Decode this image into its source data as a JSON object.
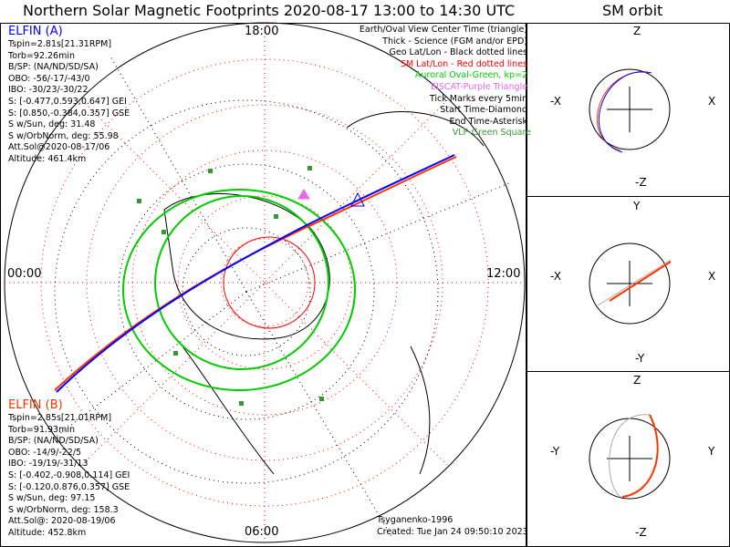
{
  "title": "Northern Solar Magnetic Footprints 2020-08-17 13:00 to 14:30 UTC",
  "orbit_title": "SM orbit",
  "colors": {
    "elfin_a": "#0000ff",
    "elfin_b": "#ff3300",
    "oval": "#00cc00",
    "eiscat": "#ee66ee",
    "vlf": "#339933",
    "grid_sm": "#ff0000"
  },
  "mlt_labels": {
    "top": "18:00",
    "left": "00:00",
    "right": "12:00",
    "bottom": "06:00"
  },
  "elfin_a": {
    "name": "ELFIN (A)",
    "lines": [
      "Tspin=2.81s[21.31RPM]",
      "Torb=92.26min",
      "B/SP: (NA/ND/SD/SA)",
      "OBO: -56/-17/-43/0",
      "IBO: -30/23/-30/22",
      "S: [-0.477,0.593,0.647] GEI",
      "S: [0.850,-0.384,0.357] GSE",
      "S w/Sun, deg: 31.48",
      "S w/OrbNorm, deg: 55.98",
      "Att.Sol@2020-08-17/06",
      "Altitude: 461.4km"
    ]
  },
  "elfin_b": {
    "name": "ELFIN (B)",
    "lines": [
      "Tspin=2.85s[21.01RPM]",
      "Torb=91.93min",
      "B/SP: (NA/ND/SD/SA)",
      "OBO: -14/9/-22/5",
      "IBO: -19/19/-31/13",
      "S: [-0.402,-0.908,0.114] GEI",
      "S: [-0.120,0.876,0.357] GSE",
      "S w/Sun, deg: 97.15",
      "S w/OrbNorm, deg: 158.3",
      "Att.Sol@: 2020-08-19/06",
      "Altitude: 452.8km"
    ]
  },
  "legend": [
    "Earth/Oval View Center Time (triangle)",
    "Thick - Science (FGM and/or EPD)",
    "Geo Lat/Lon - Black dotted lines",
    "SM Lat/Lon - Red dotted lines",
    "Auroral Oval-Green, kp=2",
    "EISCAT-Purple Triangle",
    "Tick Marks every 5min",
    "Start Time-Diamond",
    "End Time-Asterisk",
    "VLF-Green Square"
  ],
  "footer": {
    "author": "Tsyganenko-1996",
    "created": "Created: Tue Jan 24 09:50:10 2023"
  },
  "panels": [
    {
      "top": "Z",
      "bottom": "-Z",
      "left": "-X",
      "right": "X"
    },
    {
      "top": "Y",
      "bottom": "-Y",
      "left": "-X",
      "right": "X"
    },
    {
      "top": "Z",
      "bottom": "-Z",
      "left": "-Y",
      "right": "Y"
    }
  ]
}
